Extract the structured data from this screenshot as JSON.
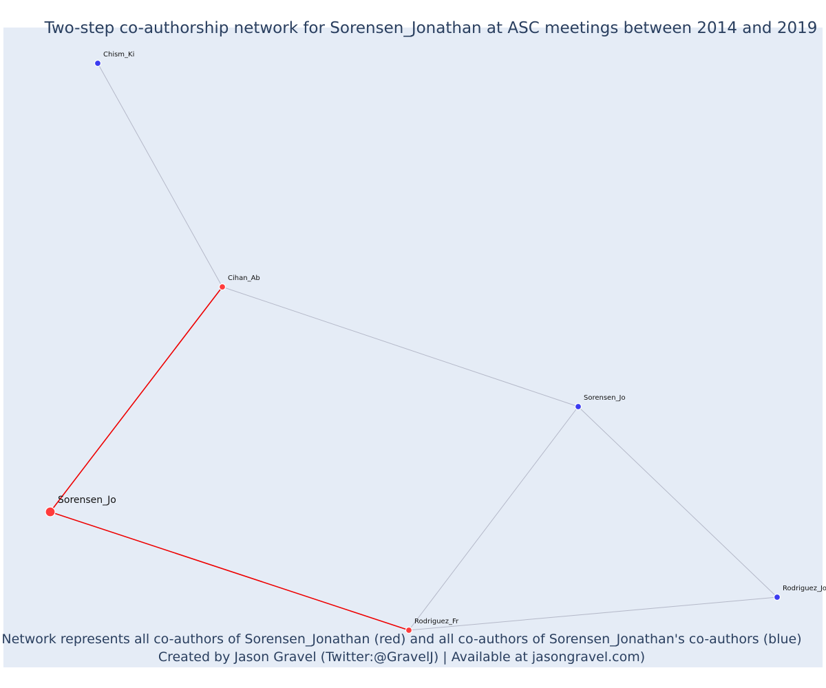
{
  "title": "Two-step co-authorship network for Sorensen_Jonathan at ASC meetings between 2014 and 2019",
  "footer": {
    "line1": "Network represents all co-authors of Sorensen_Jonathan (red) and all co-authors of Sorensen_Jonathan's co-authors (blue)",
    "line2": "Created by Jason Gravel (Twitter:@GravelJ) | Available at jasongravel.com)"
  },
  "colors": {
    "background": "#e5ecf6",
    "focal_node": "#ff3b3b",
    "coauthor_node": "#ff3b3b",
    "second_step_node": "#3b3bf0",
    "focal_edge": "#ee0000",
    "other_edge": "#b4b8c8"
  },
  "network": {
    "nodes": [
      {
        "id": "focal",
        "label": "Sorensen_Jo",
        "group": "focal"
      },
      {
        "id": "cihan",
        "label": "Cihan_Ab",
        "group": "coauthor"
      },
      {
        "id": "rodriguez_fr",
        "label": "Rodriguez_Fr",
        "group": "coauthor"
      },
      {
        "id": "chism",
        "label": "Chism_Ki",
        "group": "second-step"
      },
      {
        "id": "sorensen_jo2",
        "label": "Sorensen_Jo",
        "group": "second-step"
      },
      {
        "id": "rodriguez_jo",
        "label": "Rodriguez_Jo",
        "group": "second-step"
      }
    ],
    "edges": [
      {
        "source": "focal",
        "target": "cihan",
        "type": "focal"
      },
      {
        "source": "focal",
        "target": "rodriguez_fr",
        "type": "focal"
      },
      {
        "source": "cihan",
        "target": "chism",
        "type": "other"
      },
      {
        "source": "cihan",
        "target": "sorensen_jo2",
        "type": "other"
      },
      {
        "source": "sorensen_jo2",
        "target": "rodriguez_fr",
        "type": "other"
      },
      {
        "source": "sorensen_jo2",
        "target": "rodriguez_jo",
        "type": "other"
      },
      {
        "source": "rodriguez_fr",
        "target": "rodriguez_jo",
        "type": "other"
      }
    ]
  }
}
